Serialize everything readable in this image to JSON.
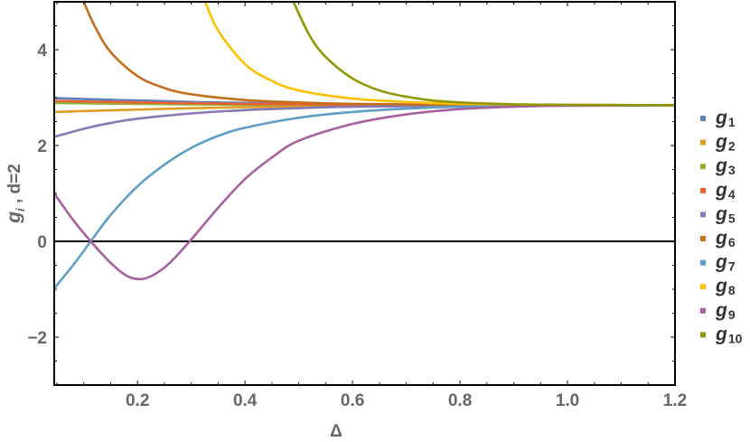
{
  "chart_data": {
    "type": "line",
    "title": "",
    "xlabel": "Δ",
    "ylabel": "g_i ,   d=2",
    "xlim": [
      0.045,
      1.2
    ],
    "ylim": [
      -3,
      5
    ],
    "x_ticks": [
      "0.2",
      "0.4",
      "0.6",
      "0.8",
      "1.0",
      "1.2"
    ],
    "y_ticks": [
      "−2",
      "0",
      "2",
      "4"
    ],
    "grid": false,
    "legend_position": "right",
    "zero_line": true,
    "converged_value": 2.84,
    "series": [
      {
        "name": "g1",
        "sub": "1",
        "color": "#5E81B5",
        "points": [
          [
            0.045,
            2.99
          ],
          [
            0.1,
            2.97
          ],
          [
            0.2,
            2.94
          ],
          [
            0.3,
            2.91
          ],
          [
            0.4,
            2.89
          ],
          [
            0.5,
            2.87
          ],
          [
            0.6,
            2.86
          ],
          [
            0.8,
            2.85
          ],
          [
            1.0,
            2.84
          ],
          [
            1.2,
            2.84
          ]
        ]
      },
      {
        "name": "g2",
        "sub": "2",
        "color": "#E19C24",
        "points": [
          [
            0.045,
            2.7
          ],
          [
            0.1,
            2.72
          ],
          [
            0.2,
            2.75
          ],
          [
            0.3,
            2.78
          ],
          [
            0.4,
            2.8
          ],
          [
            0.5,
            2.82
          ],
          [
            0.6,
            2.83
          ],
          [
            0.8,
            2.84
          ],
          [
            1.0,
            2.84
          ],
          [
            1.2,
            2.84
          ]
        ]
      },
      {
        "name": "g3",
        "sub": "3",
        "color": "#8FB032",
        "points": [
          [
            0.045,
            2.89
          ],
          [
            0.1,
            2.88
          ],
          [
            0.2,
            2.87
          ],
          [
            0.3,
            2.86
          ],
          [
            0.4,
            2.85
          ],
          [
            0.6,
            2.845
          ],
          [
            0.8,
            2.84
          ],
          [
            1.0,
            2.84
          ],
          [
            1.2,
            2.84
          ]
        ]
      },
      {
        "name": "g4",
        "sub": "4",
        "color": "#EB6235",
        "points": [
          [
            0.045,
            2.93
          ],
          [
            0.1,
            2.92
          ],
          [
            0.2,
            2.9
          ],
          [
            0.3,
            2.88
          ],
          [
            0.4,
            2.87
          ],
          [
            0.5,
            2.86
          ],
          [
            0.6,
            2.85
          ],
          [
            0.8,
            2.84
          ],
          [
            1.0,
            2.84
          ],
          [
            1.2,
            2.84
          ]
        ]
      },
      {
        "name": "g5",
        "sub": "5",
        "color": "#8778B3",
        "points": [
          [
            0.045,
            2.18
          ],
          [
            0.1,
            2.35
          ],
          [
            0.15,
            2.47
          ],
          [
            0.2,
            2.56
          ],
          [
            0.3,
            2.67
          ],
          [
            0.4,
            2.74
          ],
          [
            0.5,
            2.78
          ],
          [
            0.6,
            2.81
          ],
          [
            0.8,
            2.83
          ],
          [
            1.0,
            2.84
          ],
          [
            1.2,
            2.84
          ]
        ]
      },
      {
        "name": "g6",
        "sub": "6",
        "color": "#C56E1A",
        "points": [
          [
            0.1,
            5.0
          ],
          [
            0.12,
            4.5
          ],
          [
            0.15,
            3.95
          ],
          [
            0.2,
            3.45
          ],
          [
            0.25,
            3.2
          ],
          [
            0.3,
            3.07
          ],
          [
            0.4,
            2.95
          ],
          [
            0.5,
            2.9
          ],
          [
            0.6,
            2.87
          ],
          [
            0.8,
            2.85
          ],
          [
            1.0,
            2.84
          ],
          [
            1.2,
            2.84
          ]
        ]
      },
      {
        "name": "g7",
        "sub": "7",
        "color": "#5D9EC7",
        "points": [
          [
            0.045,
            -0.98
          ],
          [
            0.08,
            -0.5
          ],
          [
            0.113,
            0.0
          ],
          [
            0.15,
            0.55
          ],
          [
            0.2,
            1.15
          ],
          [
            0.25,
            1.6
          ],
          [
            0.3,
            1.95
          ],
          [
            0.35,
            2.2
          ],
          [
            0.4,
            2.37
          ],
          [
            0.5,
            2.58
          ],
          [
            0.6,
            2.7
          ],
          [
            0.7,
            2.77
          ],
          [
            0.8,
            2.81
          ],
          [
            1.0,
            2.84
          ],
          [
            1.2,
            2.84
          ]
        ]
      },
      {
        "name": "g8",
        "sub": "8",
        "color": "#FFBF00",
        "points": [
          [
            0.326,
            5.0
          ],
          [
            0.35,
            4.4
          ],
          [
            0.4,
            3.7
          ],
          [
            0.45,
            3.35
          ],
          [
            0.5,
            3.15
          ],
          [
            0.6,
            2.98
          ],
          [
            0.7,
            2.91
          ],
          [
            0.8,
            2.87
          ],
          [
            1.0,
            2.85
          ],
          [
            1.2,
            2.84
          ]
        ]
      },
      {
        "name": "g9",
        "sub": "9",
        "color": "#A5609D",
        "points": [
          [
            0.045,
            1.0
          ],
          [
            0.08,
            0.45
          ],
          [
            0.113,
            0.0
          ],
          [
            0.15,
            -0.45
          ],
          [
            0.18,
            -0.72
          ],
          [
            0.205,
            -0.79
          ],
          [
            0.23,
            -0.7
          ],
          [
            0.26,
            -0.45
          ],
          [
            0.297,
            0.0
          ],
          [
            0.35,
            0.7
          ],
          [
            0.4,
            1.3
          ],
          [
            0.45,
            1.75
          ],
          [
            0.5,
            2.1
          ],
          [
            0.6,
            2.45
          ],
          [
            0.7,
            2.65
          ],
          [
            0.8,
            2.76
          ],
          [
            0.9,
            2.81
          ],
          [
            1.0,
            2.83
          ],
          [
            1.2,
            2.84
          ]
        ]
      },
      {
        "name": "g10",
        "sub": "10",
        "color": "#929600",
        "points": [
          [
            0.49,
            5.0
          ],
          [
            0.52,
            4.3
          ],
          [
            0.55,
            3.85
          ],
          [
            0.6,
            3.4
          ],
          [
            0.65,
            3.15
          ],
          [
            0.7,
            3.02
          ],
          [
            0.75,
            2.94
          ],
          [
            0.8,
            2.9
          ],
          [
            0.9,
            2.86
          ],
          [
            1.0,
            2.85
          ],
          [
            1.2,
            2.84
          ]
        ]
      }
    ]
  },
  "legend": {
    "items": [
      {
        "label": "g",
        "sub": "1"
      },
      {
        "label": "g",
        "sub": "2"
      },
      {
        "label": "g",
        "sub": "3"
      },
      {
        "label": "g",
        "sub": "4"
      },
      {
        "label": "g",
        "sub": "5"
      },
      {
        "label": "g",
        "sub": "6"
      },
      {
        "label": "g",
        "sub": "7"
      },
      {
        "label": "g",
        "sub": "8"
      },
      {
        "label": "g",
        "sub": "9"
      },
      {
        "label": "g",
        "sub": "10"
      }
    ]
  }
}
